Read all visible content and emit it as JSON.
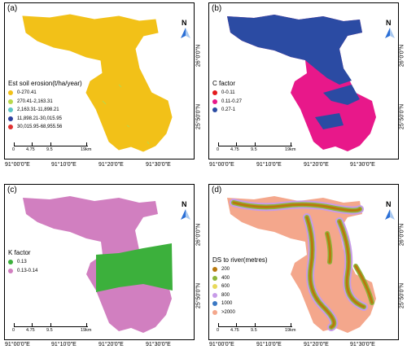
{
  "panels": [
    {
      "label": "(a)",
      "legend": {
        "title": "Est soil erosion(t/ha/year)",
        "items": [
          {
            "label": "0-270.41",
            "color": "#f2c118"
          },
          {
            "label": "270.41-2,163.31",
            "color": "#b8d84c"
          },
          {
            "label": "2,163.31-11,898.21",
            "color": "#5cc6c6"
          },
          {
            "label": "11,898.21-30,015.95",
            "color": "#2c3f9e"
          },
          {
            "label": "30,015.95-68,955.56",
            "color": "#e03131"
          }
        ]
      }
    },
    {
      "label": "(b)",
      "legend": {
        "title": "C factor",
        "items": [
          {
            "label": "0-0.11",
            "color": "#e31a1c"
          },
          {
            "label": "0.11-0.27",
            "color": "#e8188a"
          },
          {
            "label": "0.27-1",
            "color": "#2b4ba3"
          }
        ]
      }
    },
    {
      "label": "(c)",
      "legend": {
        "title": "K factor",
        "items": [
          {
            "label": "0.13",
            "color": "#3cb03c"
          },
          {
            "label": "0.13-0.14",
            "color": "#d17fc0"
          }
        ]
      }
    },
    {
      "label": "(d)",
      "legend": {
        "title": "DS to river(metres)",
        "items": [
          {
            "label": "200",
            "color": "#b8780e"
          },
          {
            "label": "400",
            "color": "#8db63a"
          },
          {
            "label": "600",
            "color": "#e8d95a"
          },
          {
            "label": "800",
            "color": "#c79be8"
          },
          {
            "label": "1000",
            "color": "#3a78c4"
          },
          {
            "label": ">2000",
            "color": "#f4a78c"
          }
        ]
      }
    }
  ],
  "scalebar": {
    "labels": [
      "0",
      "4.75",
      "9.5",
      "19km"
    ]
  },
  "north_label": "N",
  "axes": {
    "x_ticks": [
      "91°00'0\"E",
      "91°10'0\"E",
      "91°20'0\"E",
      "91°30'0\"E"
    ],
    "y_ticks": [
      "26°0'0\"N",
      "25°50'0\"N"
    ]
  }
}
